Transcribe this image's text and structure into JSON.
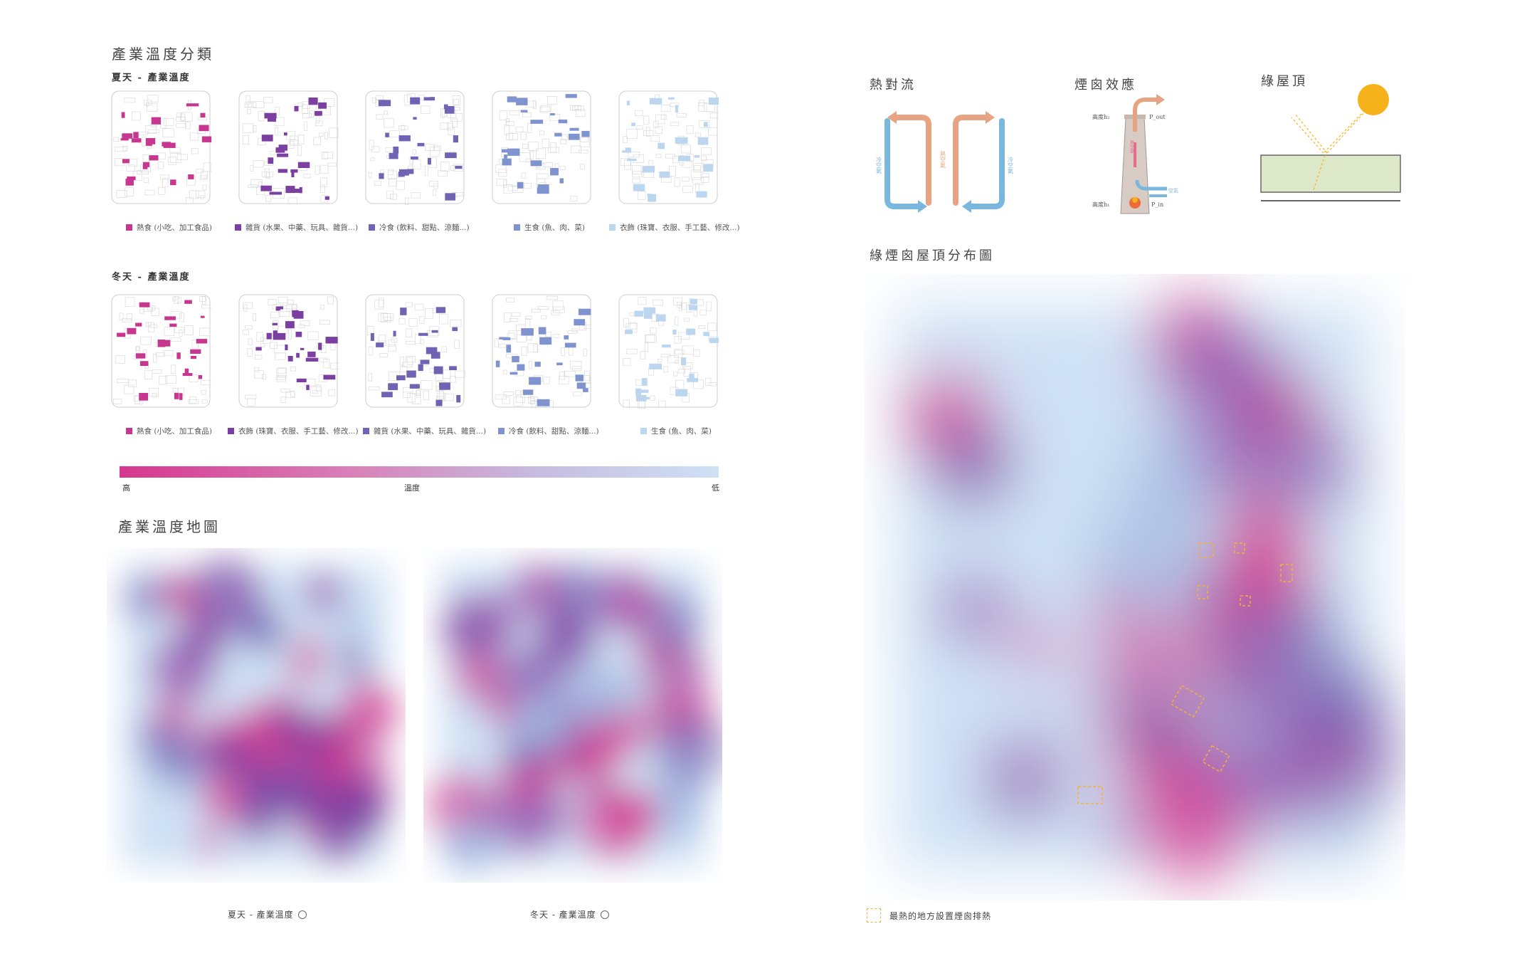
{
  "left": {
    "section_title": "產業溫度分類",
    "summer_label": "夏天 - 產業溫度",
    "winter_label": "冬天 - 產業溫度",
    "summer_legends": [
      {
        "text": "熱食 (小吃、加工食品)",
        "color": "#c8378f"
      },
      {
        "text": "雜貨 (水果、中藥、玩具、雜貨...)",
        "color": "#7b3fa1"
      },
      {
        "text": "冷食 (飲料、甜點、涼麵...)",
        "color": "#6e64b3"
      },
      {
        "text": "生食 (魚、肉、菜)",
        "color": "#7f93cf"
      },
      {
        "text": "衣飾 (珠寶、衣服、手工藝、修改...)",
        "color": "#bcd6f0"
      }
    ],
    "winter_legends": [
      {
        "text": "熱食 (小吃、加工食品)",
        "color": "#c8378f"
      },
      {
        "text": "衣飾 (珠寶、衣服、手工藝、修改...)",
        "color": "#7b3fa1"
      },
      {
        "text": "雜貨 (水果、中藥、玩具、雜貨...)",
        "color": "#6e64b3"
      },
      {
        "text": "冷食 (飲料、甜點、涼麵...)",
        "color": "#7f93cf"
      },
      {
        "text": "生食 (魚、肉、菜)",
        "color": "#bcd6f0"
      }
    ],
    "scale_high": "高",
    "scale_mid": "溫度",
    "scale_low": "低",
    "map_title": "產業溫度地圖",
    "summer_map_caption": "夏天 - 產業溫度",
    "winter_map_caption": "冬天 - 產業溫度"
  },
  "right": {
    "heat_convection": "熱對流",
    "cold_air": "冷空氣",
    "hot_air": "熱空氣",
    "chimney_effect": "煙囪效應",
    "chimney_h2": "高度h₂",
    "chimney_h1": "高度h₁",
    "chimney_pin": "P_in",
    "chimney_pout": "P_out",
    "chimney_inner": "熱空氣",
    "chimney_air": "空氣",
    "green_roof": "綠屋頂",
    "dist_title": "綠煙囪屋頂分布圖",
    "dist_legend": "最熱的地方設置煙囪排熱"
  },
  "colors": {
    "hot": "#d6368f",
    "warm": "#7b3fa1",
    "cool": "#9fb6df",
    "cold": "#cfe1f4",
    "sun": "#f6b21a",
    "roof": "#dde8c9",
    "arrow_hot": "#e8a383",
    "arrow_cold": "#79b7dd",
    "chimney_box": "#f2b23a"
  }
}
